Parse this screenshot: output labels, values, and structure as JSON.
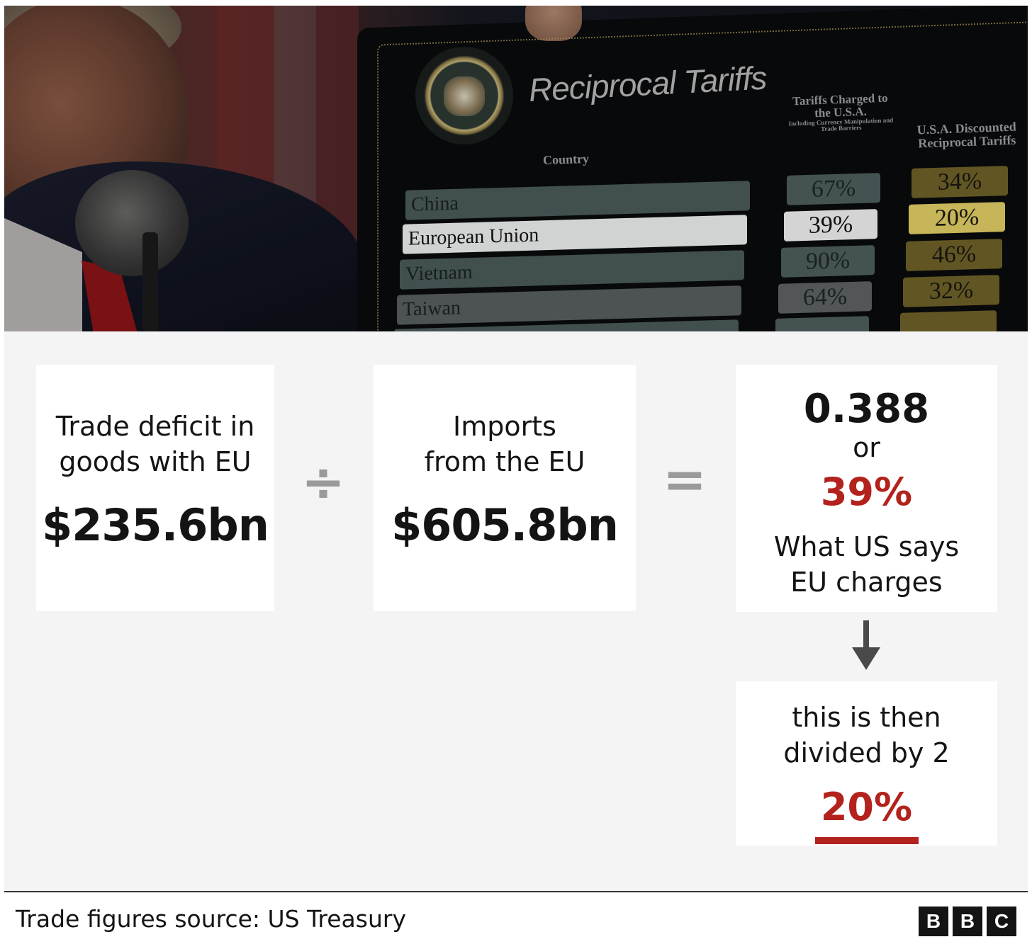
{
  "photo": {
    "board_title": "Reciprocal Tariffs",
    "col_country": "Country",
    "col_charged_title": "Tariffs Charged to the U.S.A.",
    "col_charged_note": "Including Currency Manipulation and Trade Barriers",
    "col_discounted": "U.S.A. Discounted Reciprocal Tariffs",
    "rows": [
      {
        "country": "China",
        "charged": "67%",
        "discounted": "34%"
      },
      {
        "country": "European Union",
        "charged": "39%",
        "discounted": "20%"
      },
      {
        "country": "Vietnam",
        "charged": "90%",
        "discounted": "46%"
      },
      {
        "country": "Taiwan",
        "charged": "64%",
        "discounted": "32%"
      }
    ],
    "highlighted_row": "European Union"
  },
  "diagram": {
    "box1": {
      "label_line1": "Trade deficit in",
      "label_line2": "goods with EU",
      "amount": "$235.6bn"
    },
    "divide_op": "÷",
    "box2": {
      "label_line1": "Imports",
      "label_line2": "from the EU",
      "amount": "$605.8bn"
    },
    "equals_op": "=",
    "box3": {
      "ratio": "0.388",
      "or": "or",
      "percent": "39%",
      "label_line1": "What US says",
      "label_line2": "EU charges"
    },
    "box4": {
      "label_line1": "this is then",
      "label_line2": "divided by 2",
      "percent": "20%"
    },
    "accent_color": "#b3221c",
    "operator_color": "#9a9a9a"
  },
  "footer": {
    "source": "Trade figures source: US Treasury",
    "logo_letters": [
      "B",
      "B",
      "C"
    ]
  }
}
